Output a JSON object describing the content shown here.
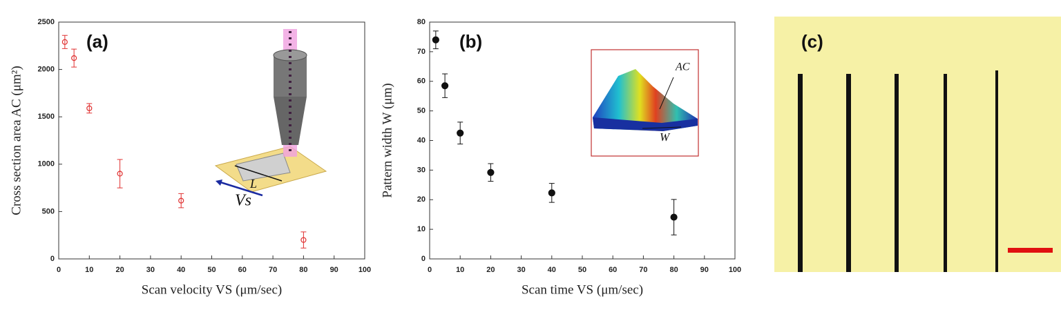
{
  "chart_data": [
    {
      "type": "scatter",
      "panel_label": "(a)",
      "xlabel": "Scan velocity VS (μm/sec)",
      "ylabel": "Cross section area AC (μm²)",
      "x": [
        2,
        5,
        10,
        20,
        40,
        80
      ],
      "values": [
        2290,
        2120,
        1590,
        900,
        615,
        200
      ],
      "errors": [
        70,
        95,
        50,
        150,
        75,
        85
      ],
      "color": "#e03030",
      "filled": false,
      "xlim": [
        0,
        100
      ],
      "xticks": [
        0,
        10,
        20,
        30,
        40,
        50,
        60,
        70,
        80,
        90,
        100
      ],
      "ylim": [
        0,
        2500
      ],
      "yticks": [
        0,
        500,
        1000,
        1500,
        2000,
        2500
      ],
      "annotations": [
        "L",
        "Vs"
      ]
    },
    {
      "type": "scatter",
      "panel_label": "(b)",
      "xlabel": "Scan time VS (μm/sec)",
      "ylabel": "Pattern width W (μm)",
      "x": [
        2,
        5,
        10,
        20,
        40,
        80
      ],
      "values": [
        74,
        58.5,
        42.5,
        29.2,
        22.3,
        14.1
      ],
      "errors": [
        3,
        4,
        3.7,
        3,
        3.2,
        6
      ],
      "color": "#111111",
      "filled": true,
      "xlim": [
        0,
        100
      ],
      "xticks": [
        0,
        10,
        20,
        30,
        40,
        50,
        60,
        70,
        80,
        90,
        100
      ],
      "ylim": [
        0,
        80
      ],
      "yticks": [
        0,
        10,
        20,
        30,
        40,
        50,
        60,
        70,
        80
      ],
      "annotations": [
        "AC",
        "W"
      ]
    }
  ],
  "image_panel": {
    "label": "(c)"
  }
}
